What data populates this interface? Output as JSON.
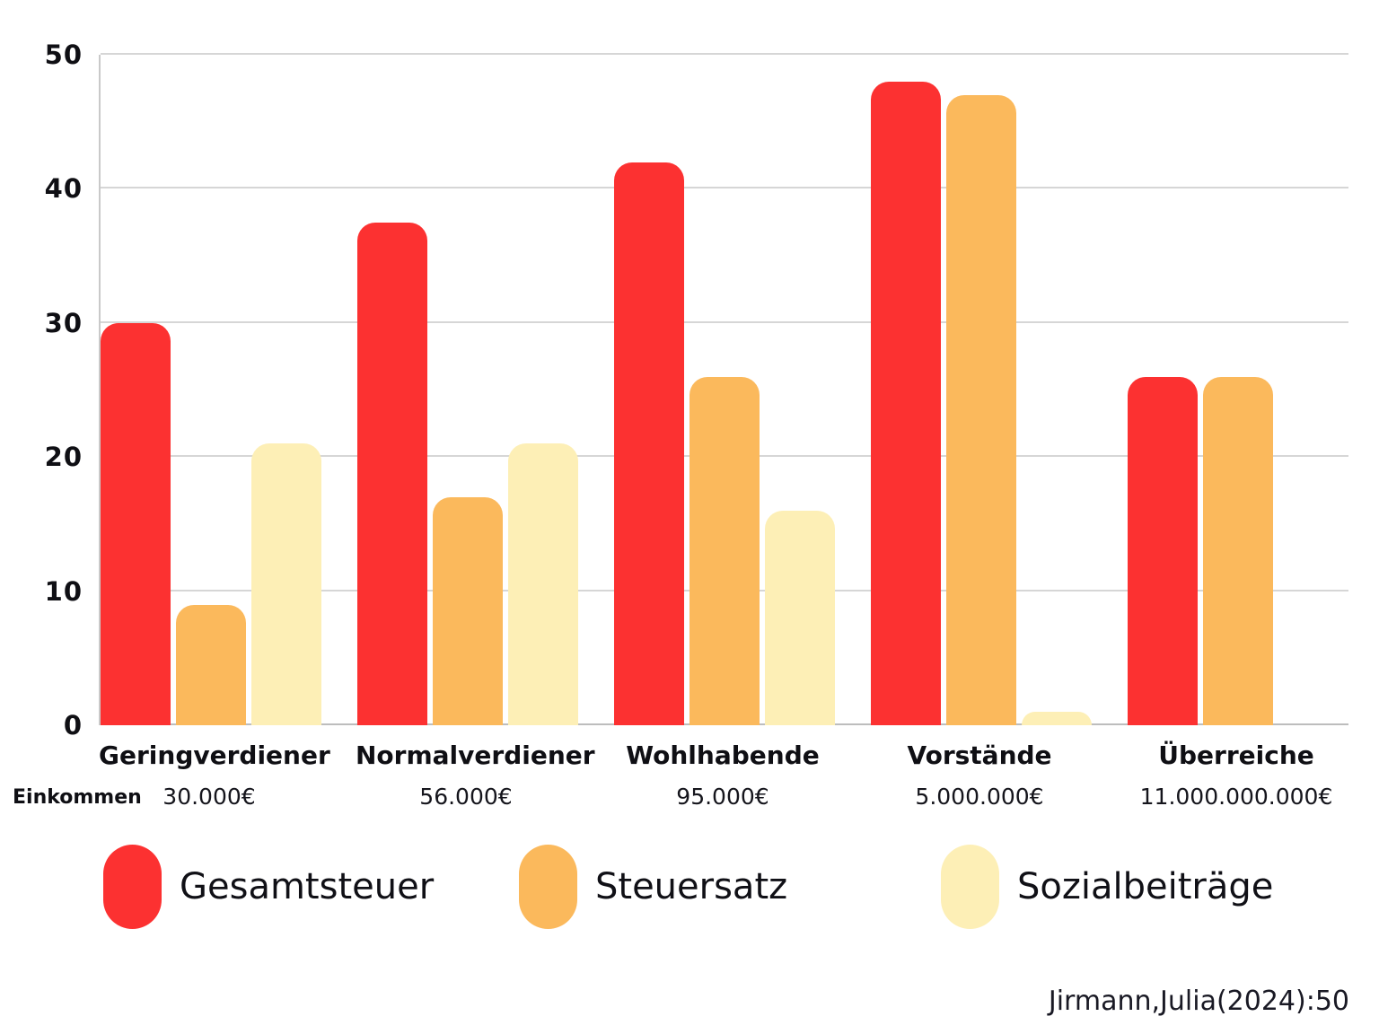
{
  "chart_data": {
    "type": "bar",
    "title": "",
    "categories": [
      "Geringverdiener",
      "Normalverdiener",
      "Wohlhabende",
      "Vorstände",
      "Überreiche"
    ],
    "income_label": "Einkommen",
    "incomes": [
      "30.000€",
      "56.000€",
      "95.000€",
      "5.000.000€",
      "11.000.000.000€"
    ],
    "series": [
      {
        "name": "Gesamtsteuer",
        "color": "#FC3131",
        "values": [
          30,
          37.5,
          42,
          48,
          26
        ]
      },
      {
        "name": "Steuersatz",
        "color": "#FBB95C",
        "values": [
          9,
          17,
          26,
          47,
          26
        ]
      },
      {
        "name": "Sozialbeiträge",
        "color": "#FDEFB6",
        "values": [
          21,
          21,
          16,
          1,
          0
        ]
      }
    ],
    "ylim": [
      0,
      50
    ],
    "yticks": [
      0,
      10,
      20,
      30,
      40,
      50
    ],
    "grid": "horizontal",
    "legend_position": "bottom",
    "source": "Jirmann,Julia(2024):50"
  }
}
